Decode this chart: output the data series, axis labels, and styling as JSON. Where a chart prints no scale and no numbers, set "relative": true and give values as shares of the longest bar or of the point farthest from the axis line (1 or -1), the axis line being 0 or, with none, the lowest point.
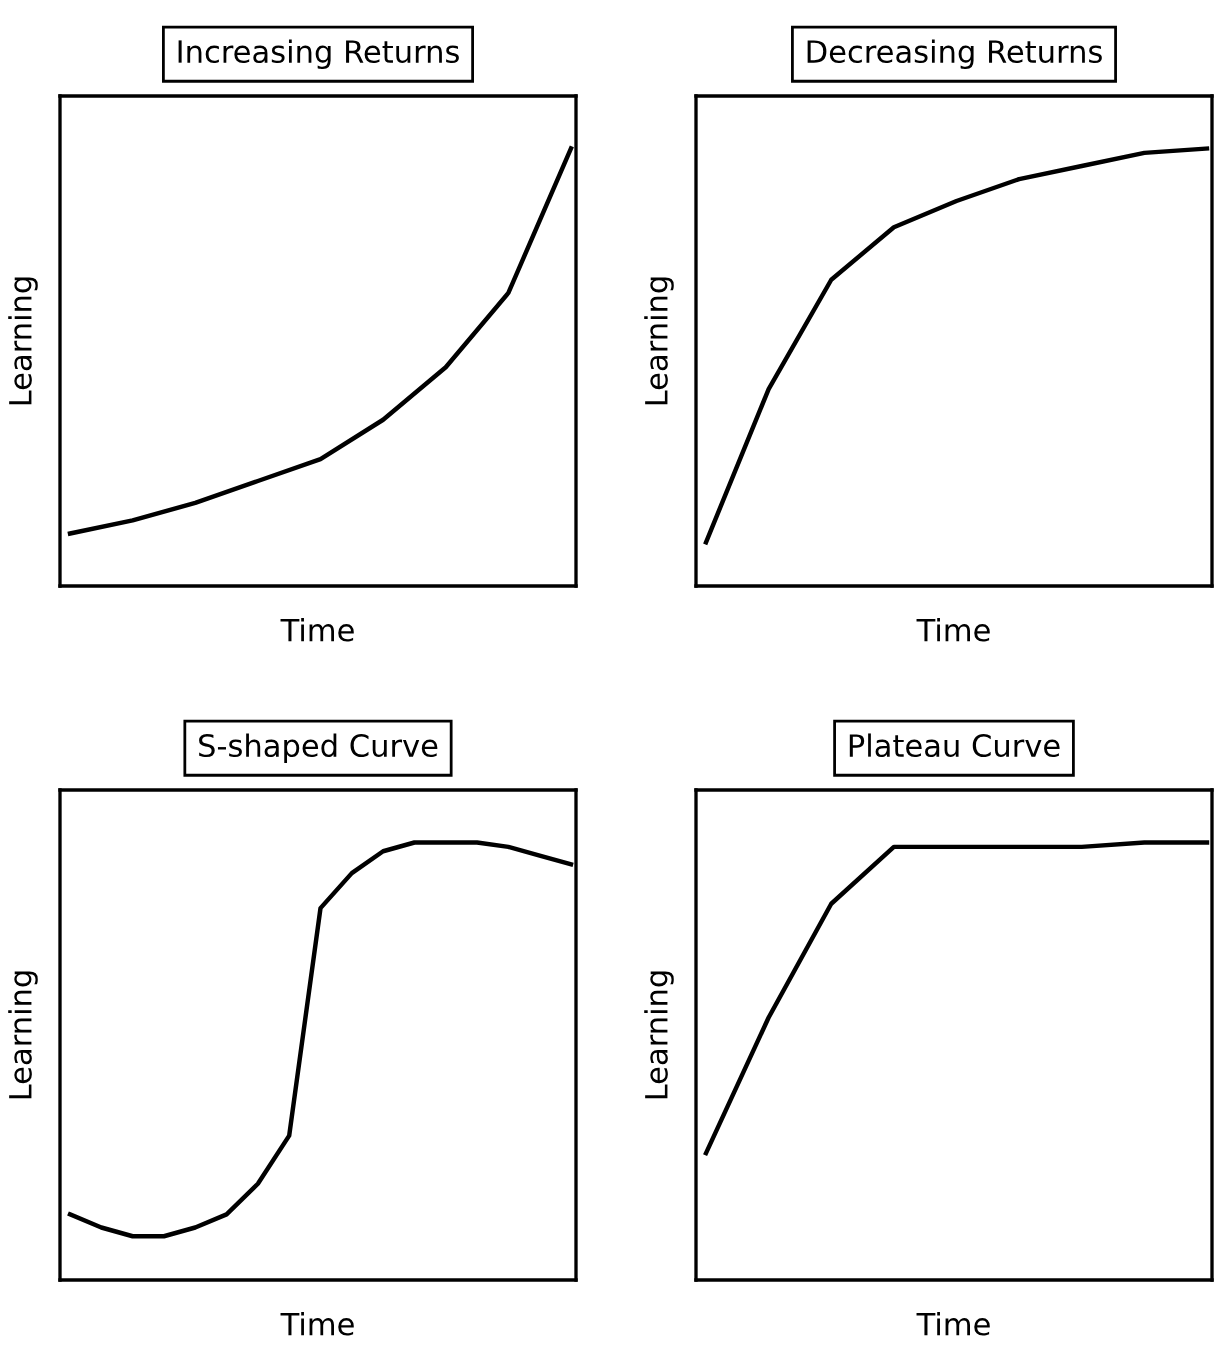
{
  "chart_data": [
    {
      "type": "line",
      "title": "Increasing Returns",
      "xlabel": "Time",
      "ylabel": "Learning",
      "relative": true,
      "categories": [
        null,
        null,
        null,
        null,
        null,
        null,
        null,
        null,
        null
      ],
      "series": [
        {
          "color": "#000000",
          "values": [
            0.12,
            0.15,
            0.19,
            0.24,
            0.29,
            0.38,
            0.5,
            0.67,
            1.0
          ]
        }
      ]
    },
    {
      "type": "line",
      "title": "Decreasing Returns",
      "xlabel": "Time",
      "ylabel": "Learning",
      "relative": true,
      "categories": [
        null,
        null,
        null,
        null,
        null,
        null,
        null,
        null,
        null
      ],
      "series": [
        {
          "color": "#000000",
          "values": [
            0.1,
            0.45,
            0.7,
            0.82,
            0.88,
            0.93,
            0.96,
            0.99,
            1.0
          ]
        }
      ]
    },
    {
      "type": "line",
      "title": "S-shaped Curve",
      "xlabel": "Time",
      "ylabel": "Learning",
      "relative": true,
      "categories": [
        null,
        null,
        null,
        null,
        null,
        null,
        null,
        null,
        null,
        null,
        null,
        null,
        null,
        null,
        null,
        null,
        null
      ],
      "series": [
        {
          "color": "#000000",
          "values": [
            0.15,
            0.12,
            0.1,
            0.1,
            0.12,
            0.15,
            0.22,
            0.33,
            0.85,
            0.93,
            0.98,
            1.0,
            1.0,
            1.0,
            0.99,
            0.97,
            0.95
          ]
        }
      ]
    },
    {
      "type": "line",
      "title": "Plateau Curve",
      "xlabel": "Time",
      "ylabel": "Learning",
      "relative": true,
      "categories": [
        null,
        null,
        null,
        null,
        null,
        null,
        null,
        null,
        null
      ],
      "series": [
        {
          "color": "#000000",
          "values": [
            0.29,
            0.6,
            0.86,
            0.99,
            0.99,
            0.99,
            0.99,
            1.0,
            1.0
          ]
        }
      ]
    }
  ]
}
